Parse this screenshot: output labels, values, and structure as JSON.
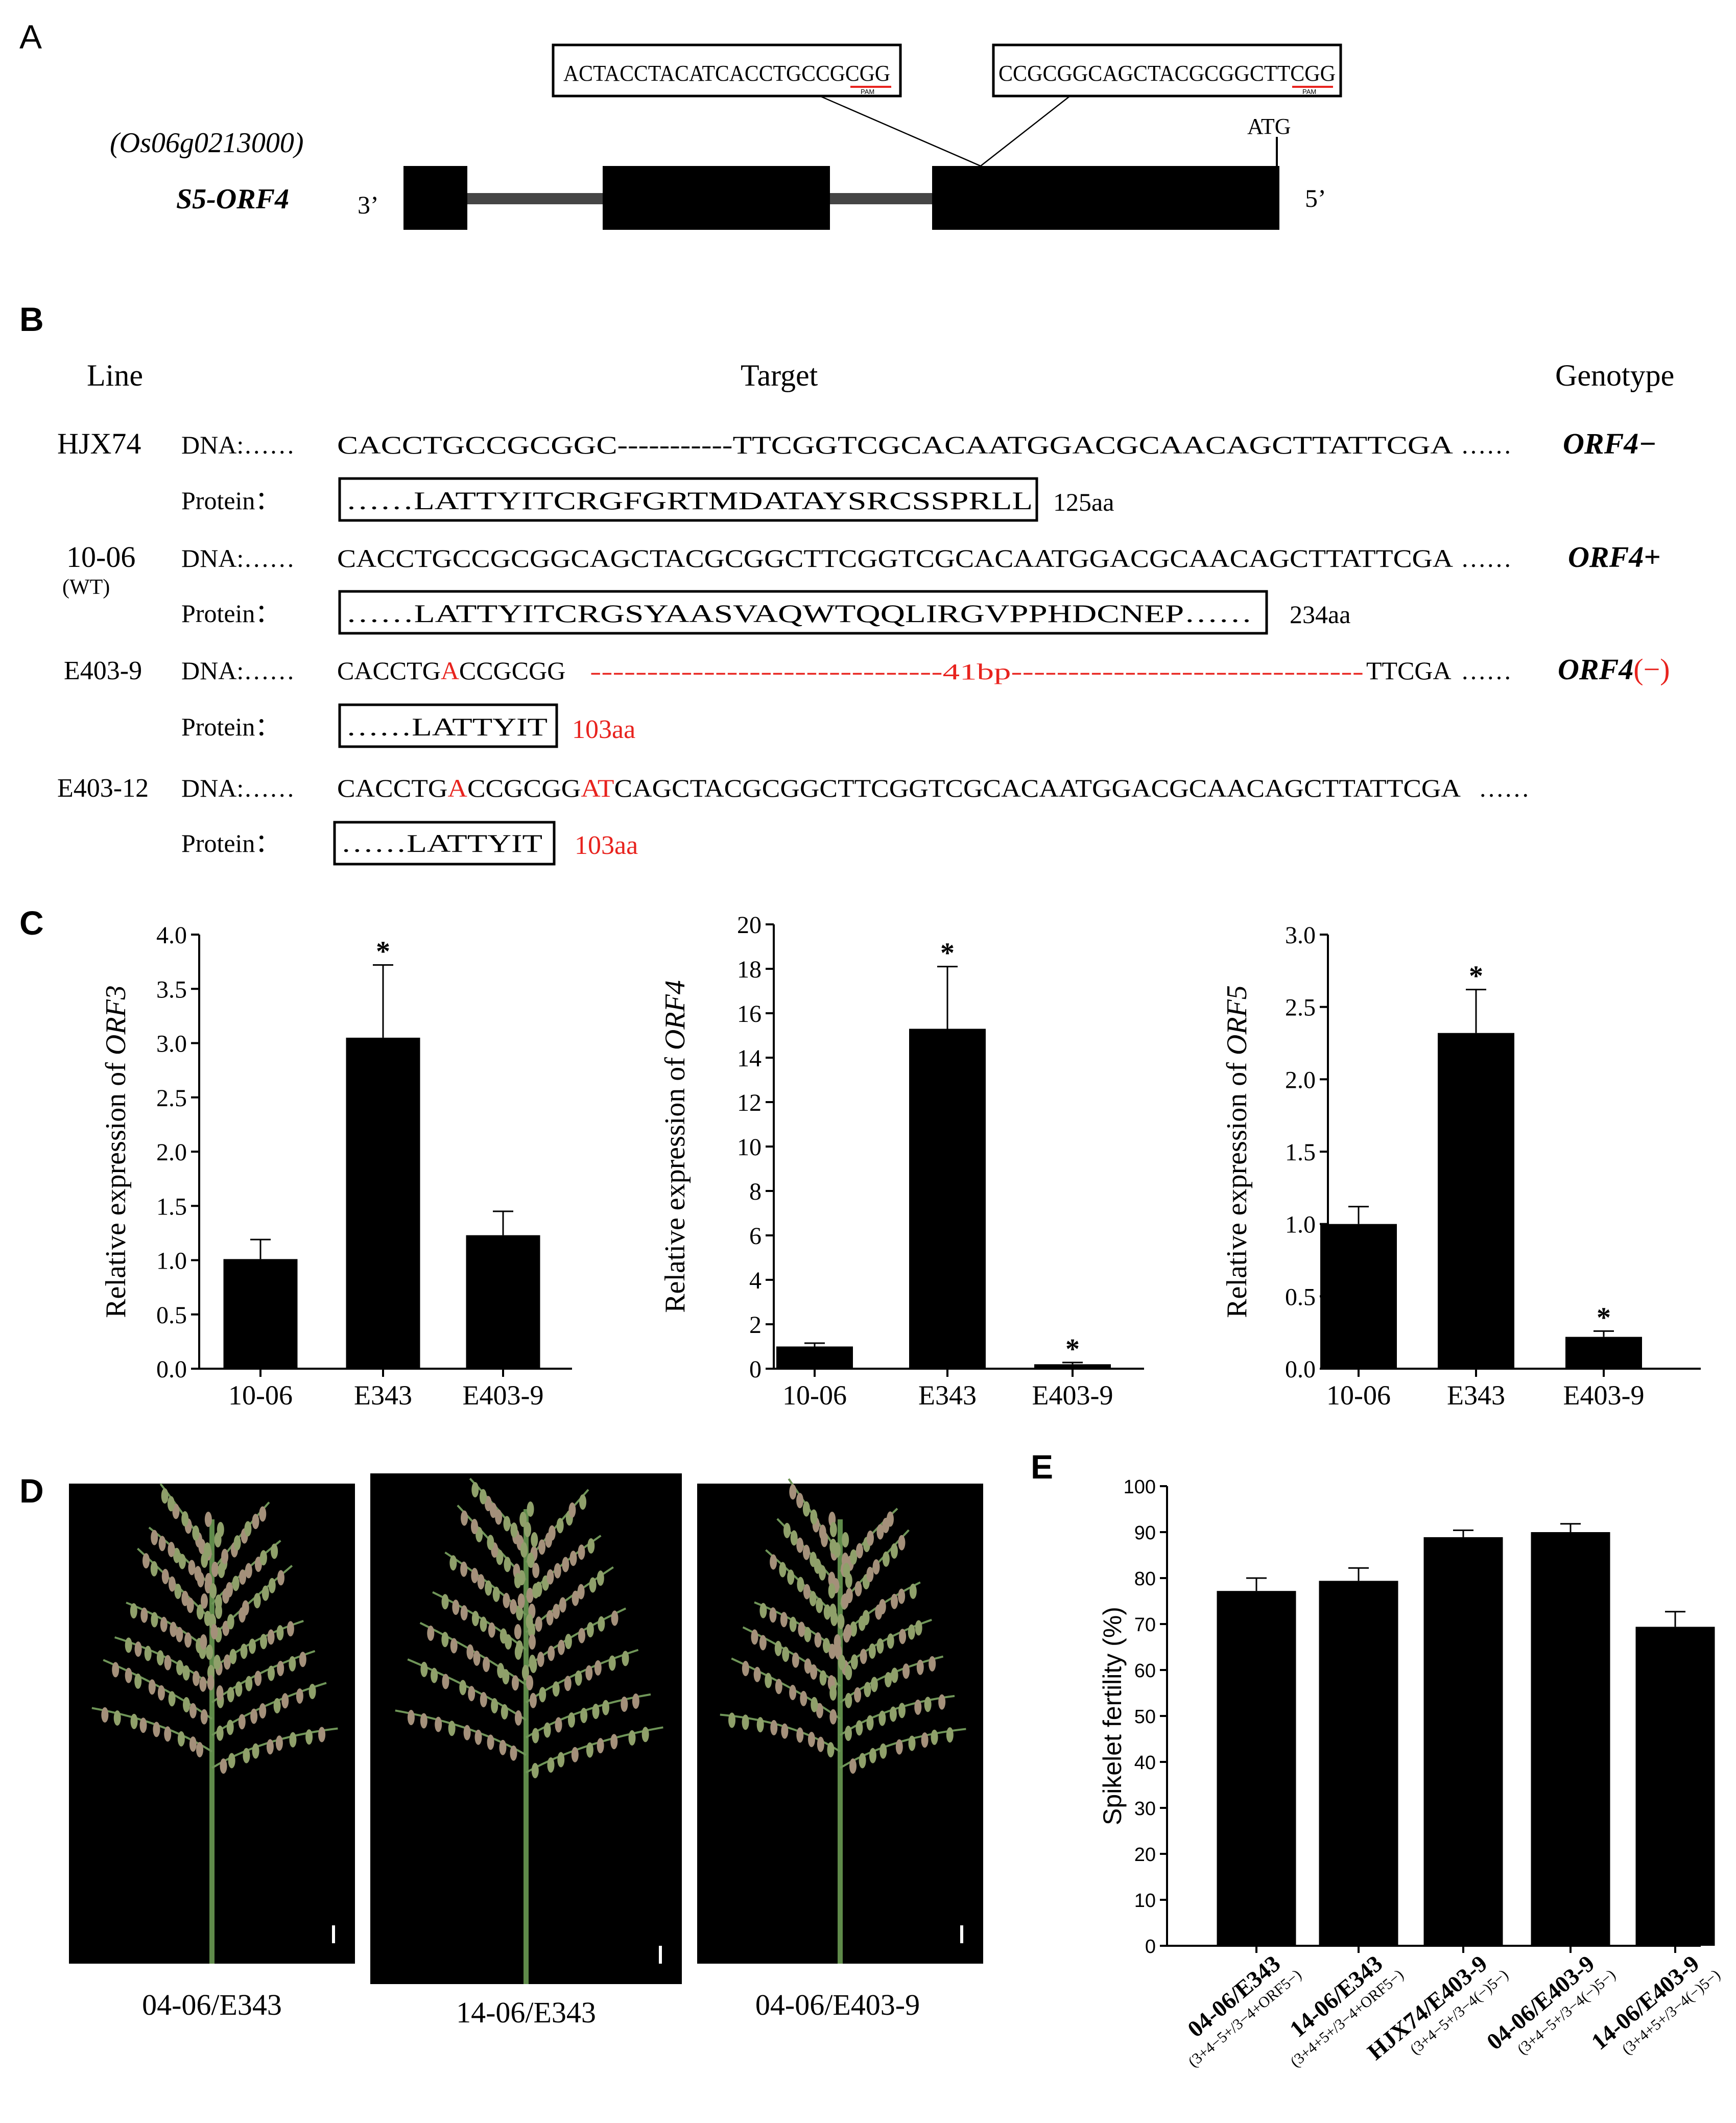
{
  "panel_labels": {
    "a": "A",
    "b": "B",
    "c": "C",
    "d": "D",
    "e": "E"
  },
  "panel_a": {
    "gene_id": "(Os06g0213000)",
    "gene_name": "S5-ORF4",
    "end_3": "3’",
    "end_5": "5’",
    "atg": "ATG",
    "target1": "ACTACCTACATCACCTGCCGCGG",
    "target2": "CCGCGGCAGCTACGCGGCTTCGG",
    "pam": "PAM"
  },
  "panel_b": {
    "headers": {
      "line": "Line",
      "target": "Target",
      "genotype": "Genotype"
    },
    "dna_label": "DNA:",
    "protein_label": "Protein：",
    "rows": [
      {
        "line": "HJX74",
        "dna": "CACCTGCCGCGGC-----------TTCGGTCGCACAATGGACGCAACAGCTTATTCGA",
        "protein": "……LATTYITCRGFGRTMDATAYSRCSSPRLL",
        "length": "125aa",
        "genotype": "ORF4−"
      },
      {
        "line": "10-06",
        "sub": "(WT)",
        "dna": "CACCTGCCGCGGCAGCTACGCGGCTTCGGTCGCACAATGGACGCAACAGCTTATTCGA",
        "protein": "……LATTYITCRGSYAASVAQWTQQLIRGVPPHDCNEP……",
        "length": "234aa",
        "genotype": "ORF4+"
      },
      {
        "line": "E403-9",
        "dna_a": "CACCTG",
        "dna_mut": "A",
        "dna_b": "CCGCGG",
        "deletion": "-------------------------------41bp-------------------------------",
        "dna_c": "TTCGA",
        "protein": "……LATTYIT",
        "length": "103aa",
        "genotype": "ORF4",
        "genotype_mark": "(−)"
      },
      {
        "line": "E403-12",
        "dna_a": "CACCTG",
        "dna_mut1": "A",
        "dna_b": "CCGCGG",
        "dna_mut2": "AT",
        "dna_c": "CAGCTACGCGGCTTCGGTCGCACAATGGACGCAACAGCTTATTCGA",
        "protein": "……LATTYIT",
        "length": "103aa"
      }
    ],
    "ellipsis": "……"
  },
  "chart_data": [
    {
      "type": "bar",
      "ylabel_prefix": "Relative expression of ",
      "ylabel_gene": "ORF3",
      "categories": [
        "10-06",
        "E343",
        "E403-9"
      ],
      "values": [
        1.01,
        3.05,
        1.23
      ],
      "errors": [
        0.18,
        0.67,
        0.22
      ],
      "significance": [
        "",
        "*",
        ""
      ],
      "ylim": [
        0,
        4
      ],
      "ticks": [
        "0.0",
        "0.5",
        "1.0",
        "1.5",
        "2.0",
        "2.5",
        "3.0",
        "3.5",
        "4.0"
      ]
    },
    {
      "type": "bar",
      "ylabel_prefix": "Relative expression of ",
      "ylabel_gene": "ORF4",
      "categories": [
        "10-06",
        "E343",
        "E403-9"
      ],
      "values": [
        1.0,
        15.3,
        0.2
      ],
      "errors": [
        0.15,
        2.8,
        0.08
      ],
      "significance": [
        "",
        "*",
        "*"
      ],
      "ylim": [
        0,
        20
      ],
      "ticks": [
        "0",
        "2",
        "4",
        "6",
        "8",
        "10",
        "12",
        "14",
        "16",
        "18",
        "20"
      ]
    },
    {
      "type": "bar",
      "ylabel_prefix": "Relative expression of ",
      "ylabel_gene": "ORF5",
      "categories": [
        "10-06",
        "E343",
        "E403-9"
      ],
      "values": [
        1.0,
        2.32,
        0.22
      ],
      "errors": [
        0.12,
        0.3,
        0.04
      ],
      "significance": [
        "",
        "*",
        "*"
      ],
      "ylim": [
        0,
        3
      ],
      "ticks": [
        "0.0",
        "0.5",
        "1.0",
        "1.5",
        "2.0",
        "2.5",
        "3.0"
      ]
    },
    {
      "type": "bar",
      "ylabel": "Spikelet fertility (%)",
      "categories": [
        "04-06/E343",
        "14-06/E343",
        "HJX74/E403-9",
        "04-06/E403-9",
        "14-06/E403-9"
      ],
      "sublabels": [
        "(3+4−5+/3−4+ORF5−)",
        "(3+4+5+/3−4+ORF5−)",
        "(3+4−5+/3−4(−)5−)",
        "(3+4−5+/3−4(−)5−)",
        "(3+4+5+/3−4(−)5−)"
      ],
      "values": [
        77.2,
        79.4,
        88.9,
        90.0,
        69.4
      ],
      "errors": [
        2.8,
        2.8,
        1.5,
        1.8,
        3.3
      ],
      "ylim": [
        0,
        100
      ],
      "ticks": [
        "0",
        "10",
        "20",
        "30",
        "40",
        "50",
        "60",
        "70",
        "80",
        "90",
        "100"
      ]
    }
  ],
  "panel_d": {
    "captions": [
      "04-06/E343",
      "14-06/E343",
      "04-06/E403-9"
    ]
  }
}
